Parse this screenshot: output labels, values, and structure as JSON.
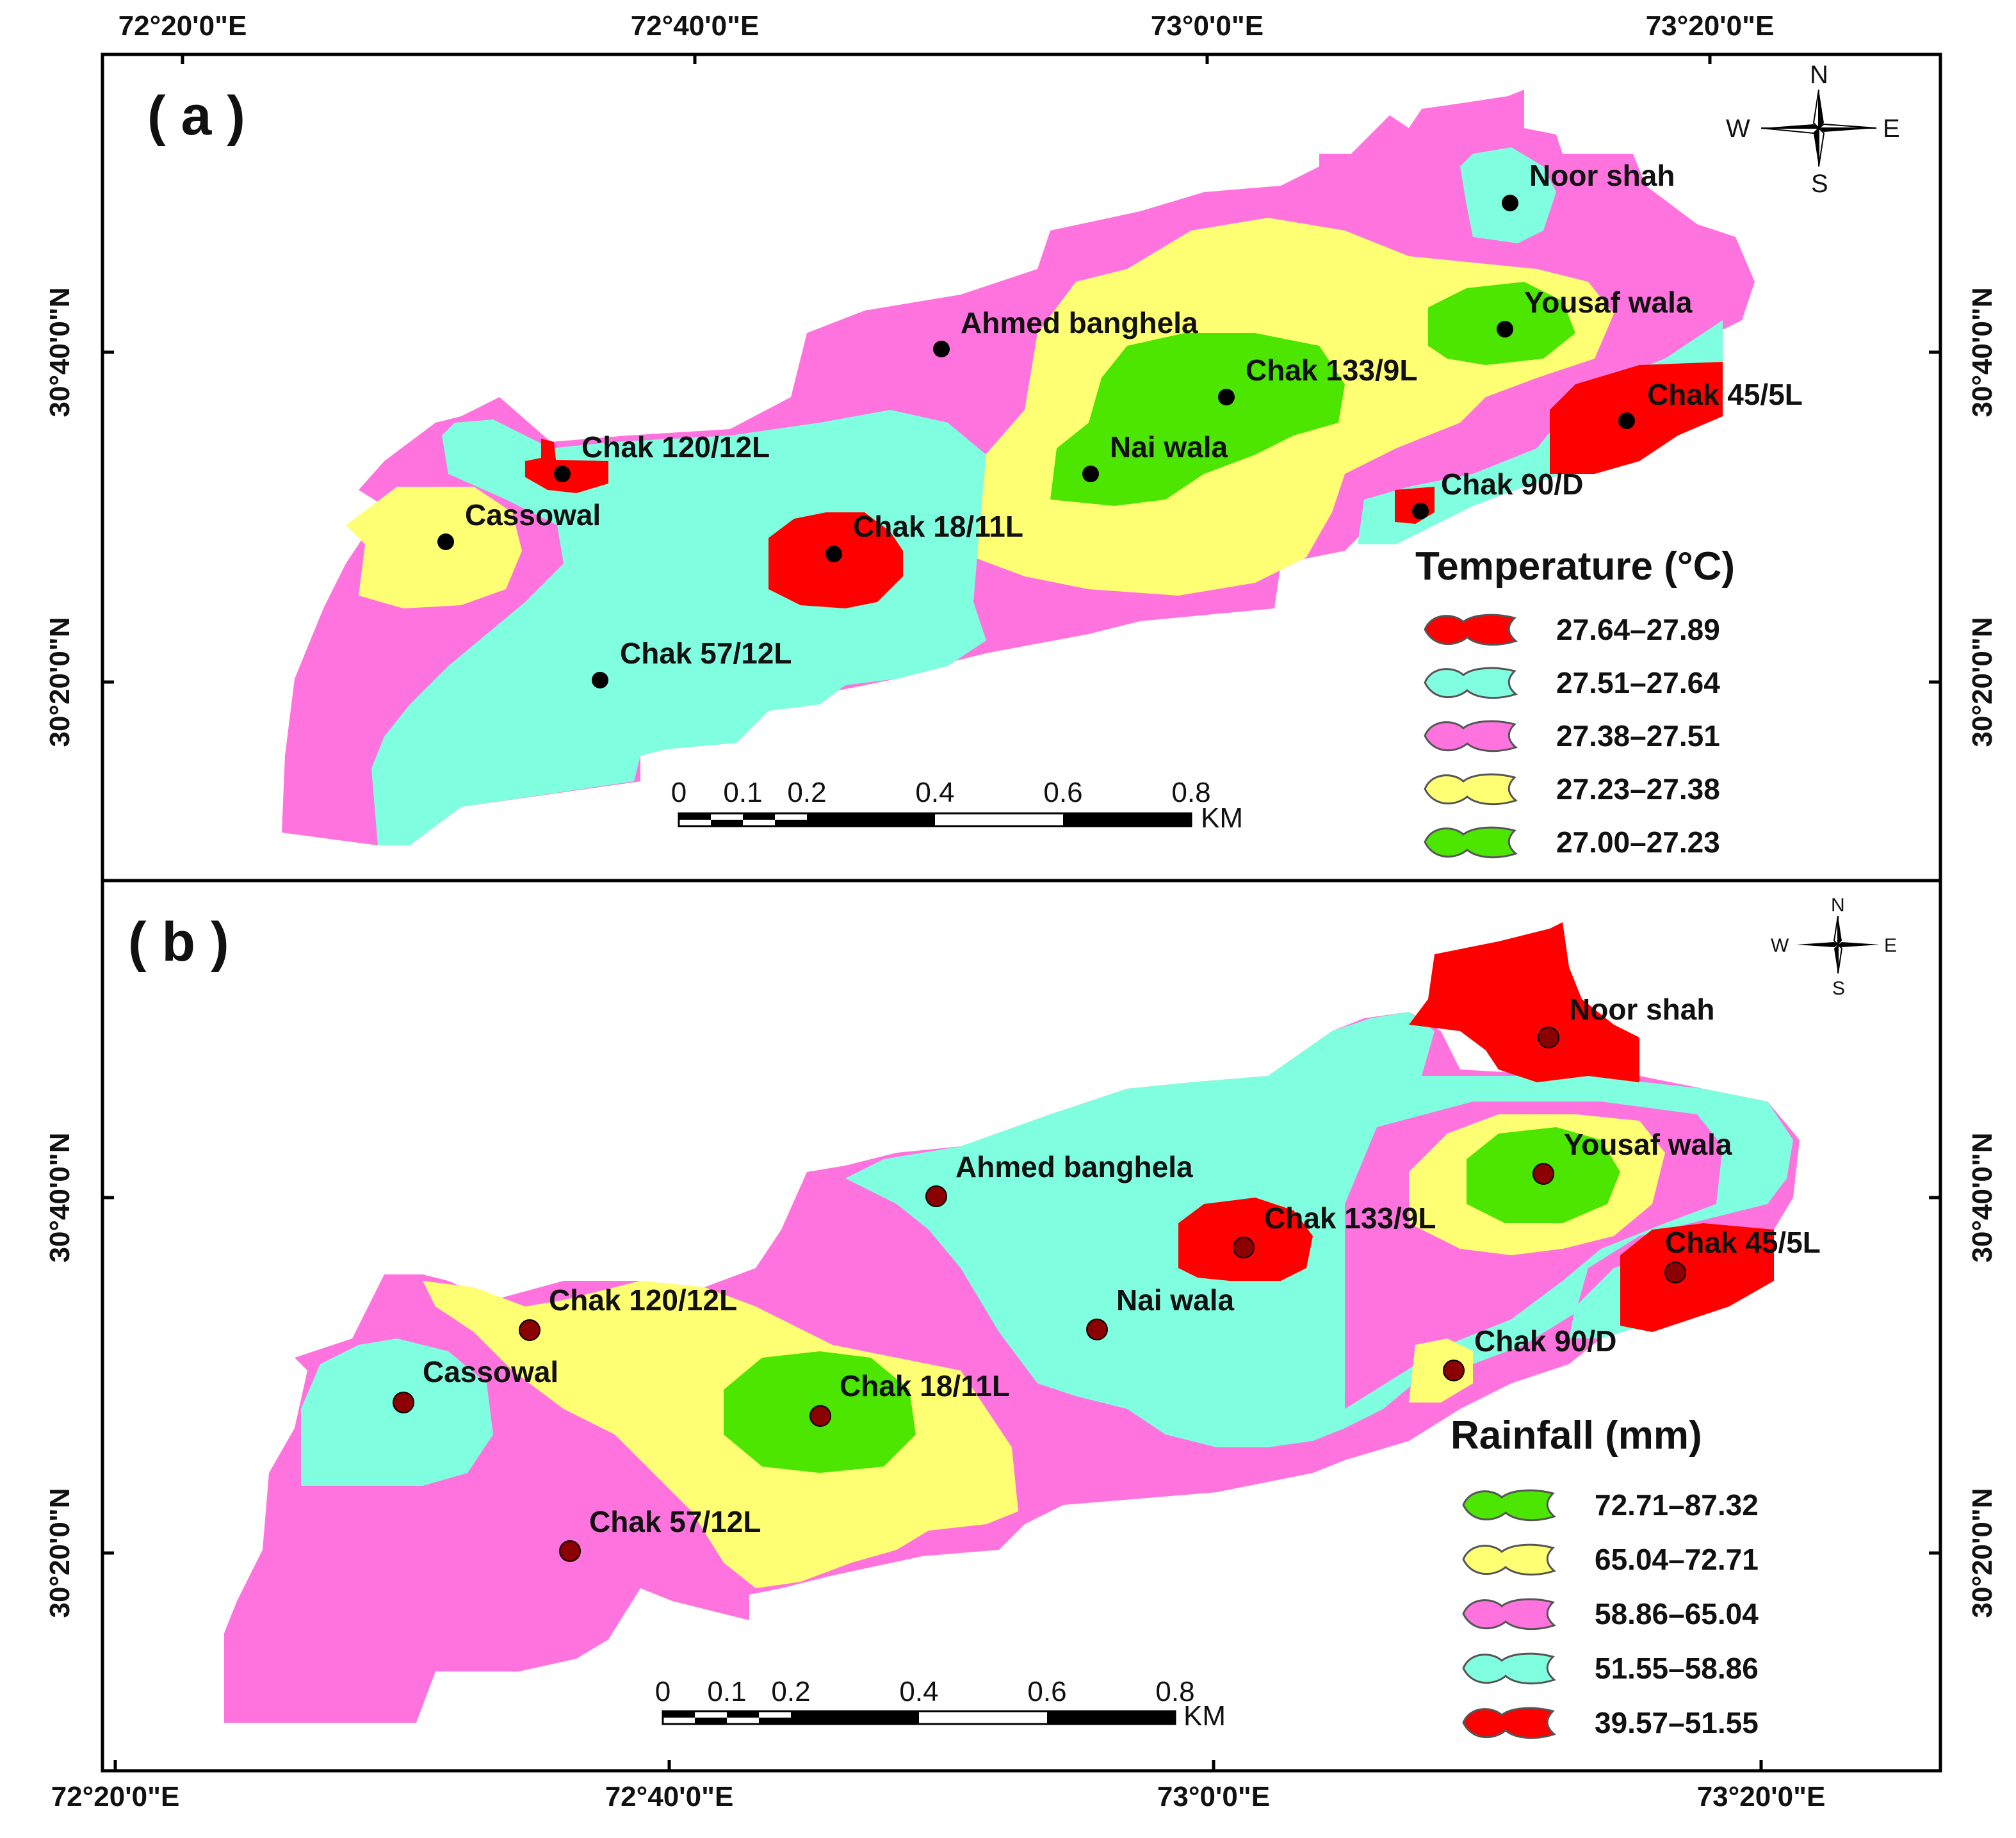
{
  "axes": {
    "top_x_ticks": [
      "72°20'0\"E",
      "72°40'0\"E",
      "73°0'0\"E",
      "73°20'0\"E"
    ],
    "bottom_x_ticks": [
      "72°20'0\"E",
      "72°40'0\"E",
      "73°0'0\"E",
      "73°20'0\"E"
    ],
    "left_y_ticks_a": [
      "30°40'0\"N",
      "30°20'0\"N"
    ],
    "right_y_ticks_a": [
      "30°40'0\"N",
      "30°20'0\"N"
    ],
    "left_y_ticks_b": [
      "30°40'0\"N",
      "30°20'0\"N"
    ],
    "right_y_ticks_b": [
      "30°40'0\"N",
      "30°20'0\"N"
    ]
  },
  "panel_a": {
    "label": "( a )",
    "legend_title": "Temperature (°C)",
    "legend": [
      {
        "range": "27.64–27.89",
        "color": "#ff0000"
      },
      {
        "range": "27.51–27.64",
        "color": "#7fffdf"
      },
      {
        "range": "27.38–27.51",
        "color": "#ff73df"
      },
      {
        "range": "27.23–27.38",
        "color": "#ffff73"
      },
      {
        "range": "27.00–27.23",
        "color": "#4ce600"
      }
    ],
    "stations": [
      "Noor shah",
      "Yousaf wala",
      "Ahmed banghela",
      "Chak 133/9L",
      "Chak 45/5L",
      "Nai wala",
      "Chak 120/12L",
      "Chak 90/D",
      "Cassowal",
      "Chak 18/11L",
      "Chak 57/12L"
    ],
    "compass": {
      "n": "N",
      "s": "S",
      "e": "E",
      "w": "W"
    },
    "scale": {
      "ticks": [
        "0",
        "0.1",
        "0.2",
        "0.4",
        "0.6",
        "0.8"
      ],
      "unit": "KM"
    }
  },
  "panel_b": {
    "label": "( b )",
    "legend_title": "Rainfall (mm)",
    "legend": [
      {
        "range": "72.71–87.32",
        "color": "#4ce600"
      },
      {
        "range": "65.04–72.71",
        "color": "#ffff73"
      },
      {
        "range": "58.86–65.04",
        "color": "#ff73df"
      },
      {
        "range": "51.55–58.86",
        "color": "#7fffdf"
      },
      {
        "range": "39.57–51.55",
        "color": "#ff0000"
      }
    ],
    "stations": [
      "Noor shah",
      "Yousaf wala",
      "Ahmed banghela",
      "Chak 133/9L",
      "Chak 45/5L",
      "Chak 120/12L",
      "Nai wala",
      "Chak 90/D",
      "Cassowal",
      "Chak 18/11L",
      "Chak 57/12L"
    ],
    "compass": {
      "n": "N",
      "s": "S",
      "e": "E",
      "w": "W"
    },
    "scale": {
      "ticks": [
        "0",
        "0.1",
        "0.2",
        "0.4",
        "0.6",
        "0.8"
      ],
      "unit": "KM"
    }
  },
  "colors": {
    "red": "#ff0000",
    "cyan": "#7fffdf",
    "pink": "#ff73df",
    "yellow": "#ffff73",
    "green": "#4ce600",
    "station_a": "#000000",
    "station_b": "#8b0000"
  }
}
